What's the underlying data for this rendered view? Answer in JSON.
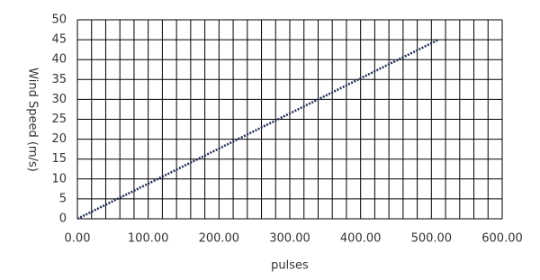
{
  "chart_data": {
    "type": "line",
    "xlabel": "pulses",
    "ylabel": "Wind Speed (m/s)",
    "x": [
      0,
      510
    ],
    "series": [
      {
        "color": "#1f2d4f",
        "values": [
          0,
          45
        ]
      }
    ],
    "xlim": [
      0,
      600
    ],
    "ylim": [
      0,
      50
    ],
    "xticks": [
      {
        "value": 0,
        "label": "0.00"
      },
      {
        "value": 100,
        "label": "100.00"
      },
      {
        "value": 200,
        "label": "200.00"
      },
      {
        "value": 300,
        "label": "300.00"
      },
      {
        "value": 400,
        "label": "400.00"
      },
      {
        "value": 500,
        "label": "500.00"
      },
      {
        "value": 600,
        "label": "600.00"
      }
    ],
    "yticks": [
      0,
      5,
      10,
      15,
      20,
      25,
      30,
      35,
      40,
      45,
      50
    ],
    "xgrid": [
      0,
      20,
      40,
      60,
      80,
      100,
      120,
      140,
      160,
      180,
      200,
      220,
      240,
      260,
      280,
      300,
      320,
      340,
      360,
      380,
      400,
      420,
      440,
      460,
      480,
      500,
      520,
      540,
      560,
      580,
      600
    ],
    "grid": true
  }
}
